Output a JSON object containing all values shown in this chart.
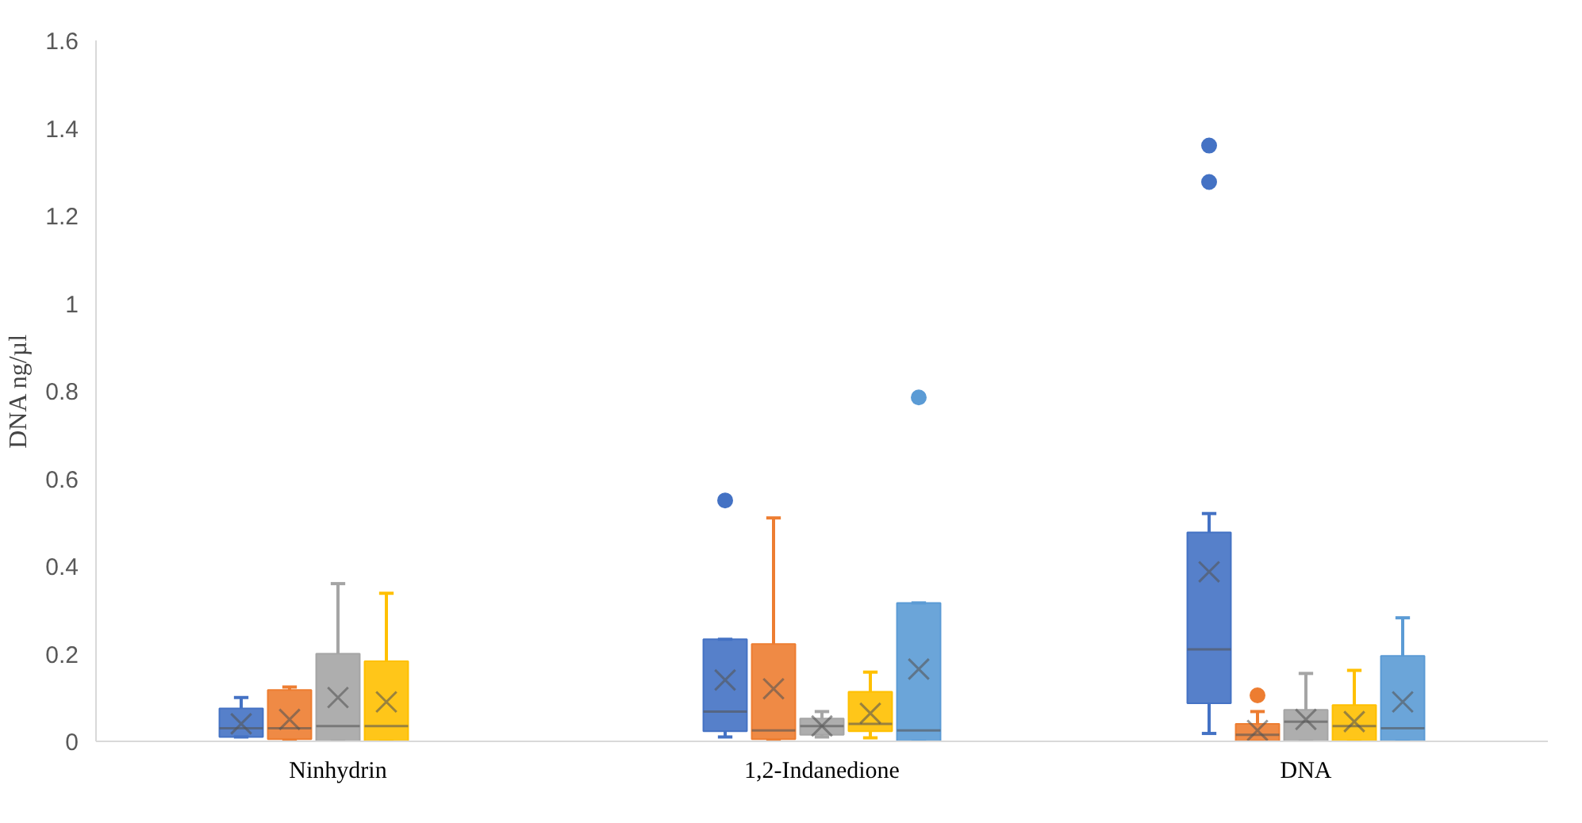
{
  "chart_data": {
    "type": "box",
    "ylabel": "DNA ng/µl",
    "categories": [
      "Ninhydrin",
      "1,2-Indanedione",
      "DNA"
    ],
    "ylim": [
      0,
      1.6
    ],
    "yticks": [
      0,
      0.2,
      0.4,
      0.6,
      0.8,
      1,
      1.2,
      1.4,
      1.6
    ],
    "grid": false,
    "series": [
      {
        "color": "#4472c4",
        "boxes": [
          {
            "low": 0.01,
            "q1": 0.01,
            "median": 0.03,
            "q3": 0.075,
            "high": 0.1,
            "mean": 0.04
          },
          {
            "low": 0.01,
            "q1": 0.023,
            "median": 0.068,
            "q3": 0.233,
            "high": 0.233,
            "mean": 0.14,
            "outliers": [
              0.55
            ]
          },
          {
            "low": 0.018,
            "q1": 0.087,
            "median": 0.21,
            "q3": 0.477,
            "high": 0.52,
            "mean": 0.387,
            "outliers": [
              1.36,
              1.277
            ]
          }
        ]
      },
      {
        "color": "#ed7d31",
        "boxes": [
          {
            "low": 0.0,
            "q1": 0.005,
            "median": 0.03,
            "q3": 0.117,
            "high": 0.124,
            "mean": 0.05
          },
          {
            "low": 0.0,
            "q1": 0.005,
            "median": 0.025,
            "q3": 0.222,
            "high": 0.51,
            "mean": 0.12
          },
          {
            "low": 0.0,
            "q1": 0.0,
            "median": 0.015,
            "q3": 0.04,
            "high": 0.068,
            "mean": 0.025,
            "outliers": [
              0.105
            ]
          }
        ]
      },
      {
        "color": "#a5a5a5",
        "boxes": [
          {
            "low": 0.0,
            "q1": 0.0,
            "median": 0.035,
            "q3": 0.2,
            "high": 0.36,
            "mean": 0.1
          },
          {
            "low": 0.01,
            "q1": 0.015,
            "median": 0.035,
            "q3": 0.052,
            "high": 0.068,
            "mean": 0.035
          },
          {
            "low": 0.0,
            "q1": 0.0,
            "median": 0.045,
            "q3": 0.072,
            "high": 0.155,
            "mean": 0.05
          }
        ]
      },
      {
        "color": "#ffc000",
        "boxes": [
          {
            "low": 0.0,
            "q1": 0.0,
            "median": 0.035,
            "q3": 0.183,
            "high": 0.338,
            "mean": 0.09
          },
          {
            "low": 0.008,
            "q1": 0.023,
            "median": 0.04,
            "q3": 0.113,
            "high": 0.158,
            "mean": 0.064
          },
          {
            "low": 0.0,
            "q1": 0.0,
            "median": 0.035,
            "q3": 0.083,
            "high": 0.162,
            "mean": 0.045
          }
        ]
      },
      {
        "color": "#5b9bd5",
        "boxes": [
          null,
          {
            "low": 0.0,
            "q1": 0.0,
            "median": 0.025,
            "q3": 0.316,
            "high": 0.316,
            "mean": 0.165,
            "outliers": [
              0.785
            ]
          },
          {
            "low": 0.0,
            "q1": 0.0,
            "median": 0.03,
            "q3": 0.195,
            "high": 0.282,
            "mean": 0.09
          }
        ]
      }
    ]
  }
}
